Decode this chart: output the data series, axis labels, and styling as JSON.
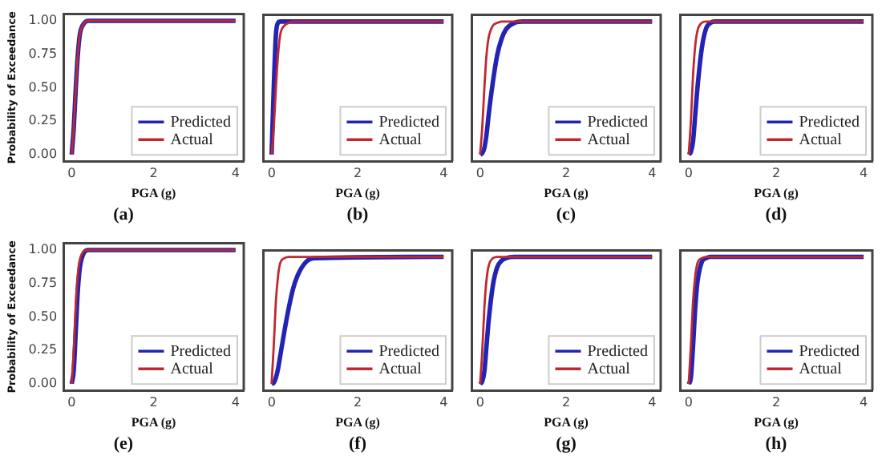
{
  "chart_data": [
    {
      "type": "line",
      "title": "(a)",
      "xlabel": "PGA (g)",
      "ylabel": "Probability of Exceedance",
      "x": [
        0,
        0.05,
        0.1,
        0.15,
        0.2,
        0.3,
        0.4,
        0.5,
        0.6,
        0.8,
        1,
        4
      ],
      "xlim": [
        -0.2,
        4.2
      ],
      "xticks": [
        0,
        2,
        4
      ],
      "ylim": [
        -0.05,
        1.05
      ],
      "yticks": [
        {
          "value": 0,
          "label": "0.00"
        },
        {
          "value": 0.25,
          "label": "0.25"
        },
        {
          "value": 0.5,
          "label": "0.50"
        },
        {
          "value": 0.75,
          "label": "0.75"
        },
        {
          "value": 1,
          "label": "1.00"
        }
      ],
      "grid": false,
      "legend": "bottom right",
      "series": [
        {
          "name": "Predicted",
          "color": "#2323b4",
          "values": [
            0,
            0.2,
            0.5,
            0.75,
            0.9,
            0.98,
            1,
            1,
            1,
            1,
            1,
            1
          ]
        },
        {
          "name": "Actual",
          "color": "#c0282d",
          "values": [
            0,
            0.2,
            0.5,
            0.75,
            0.9,
            0.98,
            1,
            1,
            1,
            1,
            1,
            1
          ]
        }
      ]
    },
    {
      "type": "line",
      "title": "(b)",
      "xlabel": "PGA (g)",
      "x": [
        0,
        0.05,
        0.1,
        0.15,
        0.2,
        0.3,
        0.4,
        0.5,
        0.6,
        0.8,
        1,
        4
      ],
      "xlim": [
        -0.2,
        4.2
      ],
      "xticks": [
        0,
        2,
        4
      ],
      "ylim": [
        -0.05,
        1.05
      ],
      "tick_labels": "x",
      "grid": false,
      "legend": "bottom right",
      "series": [
        {
          "name": "Predicted",
          "color": "#2323b4",
          "values": [
            0,
            0.5,
            0.9,
            0.99,
            1,
            1,
            1,
            1,
            1,
            1,
            1,
            1
          ]
        },
        {
          "name": "Actual",
          "color": "#c0282d",
          "values": [
            0,
            0.2,
            0.5,
            0.75,
            0.9,
            0.97,
            0.99,
            1,
            1,
            1,
            1,
            1
          ]
        }
      ]
    },
    {
      "type": "line",
      "title": "(c)",
      "xlabel": "PGA (g)",
      "x": [
        0,
        0.05,
        0.1,
        0.15,
        0.2,
        0.3,
        0.4,
        0.5,
        0.6,
        0.8,
        1,
        4
      ],
      "xlim": [
        -0.2,
        4.2
      ],
      "xticks": [
        0,
        2,
        4
      ],
      "ylim": [
        -0.05,
        1.05
      ],
      "tick_labels": "x",
      "grid": false,
      "legend": "bottom right",
      "series": [
        {
          "name": "Predicted",
          "color": "#2323b4",
          "values": [
            0,
            0.01,
            0.05,
            0.15,
            0.3,
            0.55,
            0.75,
            0.87,
            0.94,
            0.99,
            1,
            1
          ]
        },
        {
          "name": "Actual",
          "color": "#c0282d",
          "values": [
            0,
            0.2,
            0.5,
            0.75,
            0.88,
            0.97,
            0.99,
            1,
            1,
            1,
            1,
            1
          ]
        }
      ]
    },
    {
      "type": "line",
      "title": "(d)",
      "xlabel": "PGA (g)",
      "x": [
        0,
        0.05,
        0.1,
        0.15,
        0.2,
        0.3,
        0.4,
        0.5,
        0.6,
        0.8,
        1,
        4
      ],
      "xlim": [
        -0.2,
        4.2
      ],
      "xticks": [
        0,
        2,
        4
      ],
      "ylim": [
        -0.05,
        1.05
      ],
      "tick_labels": "x",
      "grid": false,
      "legend": "bottom right",
      "series": [
        {
          "name": "Predicted",
          "color": "#2323b4",
          "values": [
            0,
            0.02,
            0.1,
            0.3,
            0.5,
            0.8,
            0.95,
            0.99,
            1,
            1,
            1,
            1
          ]
        },
        {
          "name": "Actual",
          "color": "#c0282d",
          "values": [
            0,
            0.25,
            0.6,
            0.82,
            0.93,
            0.99,
            1,
            1,
            1,
            1,
            1,
            1
          ]
        }
      ]
    },
    {
      "type": "line",
      "title": "(e)",
      "xlabel": "PGA (g)",
      "ylabel": "Probability of Exceedance",
      "x": [
        0,
        0.05,
        0.1,
        0.15,
        0.2,
        0.3,
        0.4,
        0.5,
        0.6,
        0.8,
        1,
        4
      ],
      "xlim": [
        -0.2,
        4.2
      ],
      "xticks": [
        0,
        2,
        4
      ],
      "ylim": [
        -0.05,
        1.05
      ],
      "yticks": [
        {
          "value": 0,
          "label": "0.00"
        },
        {
          "value": 0.25,
          "label": "0.25"
        },
        {
          "value": 0.5,
          "label": "0.50"
        },
        {
          "value": 0.75,
          "label": "0.75"
        },
        {
          "value": 1,
          "label": "1.00"
        }
      ],
      "grid": false,
      "legend": "bottom right",
      "series": [
        {
          "name": "Predicted",
          "color": "#2323b4",
          "values": [
            0,
            0.1,
            0.4,
            0.7,
            0.87,
            0.98,
            1,
            1,
            1,
            1,
            1,
            1
          ]
        },
        {
          "name": "Actual",
          "color": "#c0282d",
          "values": [
            0,
            0.25,
            0.6,
            0.82,
            0.93,
            0.99,
            1,
            1,
            1,
            1,
            1,
            1
          ]
        }
      ]
    },
    {
      "type": "line",
      "title": "(f)",
      "xlabel": "PGA (g)",
      "x": [
        0,
        0.05,
        0.1,
        0.15,
        0.2,
        0.3,
        0.4,
        0.5,
        0.6,
        0.8,
        1,
        4
      ],
      "xlim": [
        -0.2,
        4.2
      ],
      "xticks": [
        0,
        2,
        4
      ],
      "ylim": [
        -0.05,
        1.05
      ],
      "tick_labels": "x",
      "grid": false,
      "legend": "bottom right",
      "series": [
        {
          "name": "Predicted",
          "color": "#2323b4",
          "values": [
            0,
            0.01,
            0.05,
            0.12,
            0.22,
            0.42,
            0.6,
            0.75,
            0.85,
            0.96,
            0.99,
            1
          ]
        },
        {
          "name": "Actual",
          "color": "#c0282d",
          "values": [
            0,
            0.3,
            0.65,
            0.85,
            0.95,
            0.99,
            1,
            1,
            1,
            1,
            1,
            1
          ]
        }
      ]
    },
    {
      "type": "line",
      "title": "(g)",
      "xlabel": "PGA (g)",
      "x": [
        0,
        0.05,
        0.1,
        0.15,
        0.2,
        0.3,
        0.4,
        0.5,
        0.6,
        0.8,
        1,
        4
      ],
      "xlim": [
        -0.2,
        4.2
      ],
      "xticks": [
        0,
        2,
        4
      ],
      "ylim": [
        -0.05,
        1.05
      ],
      "tick_labels": "x",
      "grid": false,
      "legend": "bottom right",
      "series": [
        {
          "name": "Predicted",
          "color": "#2323b4",
          "values": [
            0,
            0.02,
            0.1,
            0.3,
            0.5,
            0.78,
            0.92,
            0.97,
            0.99,
            1,
            1,
            1
          ]
        },
        {
          "name": "Actual",
          "color": "#c0282d",
          "values": [
            0,
            0.25,
            0.6,
            0.82,
            0.93,
            0.99,
            1,
            1,
            1,
            1,
            1,
            1
          ]
        }
      ]
    },
    {
      "type": "line",
      "title": "(h)",
      "xlabel": "PGA (g)",
      "x": [
        0,
        0.05,
        0.1,
        0.15,
        0.2,
        0.3,
        0.4,
        0.5,
        0.6,
        0.8,
        1,
        4
      ],
      "xlim": [
        -0.2,
        4.2
      ],
      "xticks": [
        0,
        2,
        4
      ],
      "ylim": [
        -0.05,
        1.05
      ],
      "tick_labels": "x",
      "grid": false,
      "legend": "bottom right",
      "series": [
        {
          "name": "Predicted",
          "color": "#2323b4",
          "values": [
            0,
            0.05,
            0.3,
            0.6,
            0.8,
            0.96,
            0.99,
            1,
            1,
            1,
            1,
            1
          ]
        },
        {
          "name": "Actual",
          "color": "#c0282d",
          "values": [
            0,
            0.3,
            0.65,
            0.85,
            0.95,
            0.99,
            1,
            1,
            1,
            1,
            1,
            1
          ]
        }
      ]
    }
  ]
}
